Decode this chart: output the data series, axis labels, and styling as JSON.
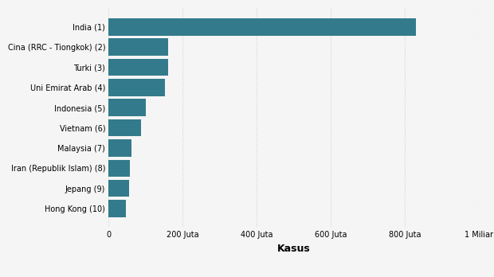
{
  "categories": [
    "Hong Kong (10)",
    "Jepang (9)",
    "Iran (Republik Islam) (8)",
    "Malaysia (7)",
    "Vietnam (6)",
    "Indonesia (5)",
    "Uni Emirat Arab (4)",
    "Turki (3)",
    "Cina (RRC - Tiongkok) (2)",
    "India (1)"
  ],
  "values": [
    47000000,
    55000000,
    57000000,
    62000000,
    88000000,
    100000000,
    152000000,
    160000000,
    160000000,
    830000000
  ],
  "bar_color": "#337b8c",
  "xlabel": "Kasus",
  "xlim": [
    0,
    1000000000
  ],
  "xticks": [
    0,
    200000000,
    400000000,
    600000000,
    800000000,
    1000000000
  ],
  "xtick_labels": [
    "0",
    "200 Juta",
    "400 Juta",
    "600 Juta",
    "800 Juta",
    "1 Miliar"
  ],
  "background_color": "#f5f5f5",
  "bar_height": 0.85,
  "label_fontsize": 7.0,
  "xlabel_fontsize": 9,
  "grid_color": "#d0d0d0"
}
